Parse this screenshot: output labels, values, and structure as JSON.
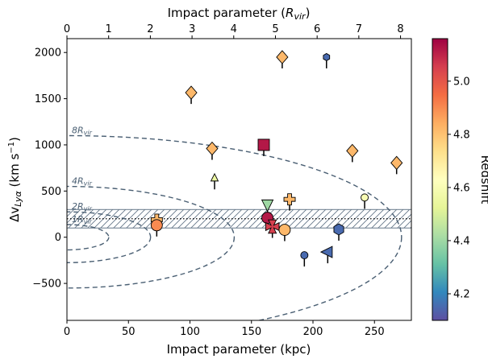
{
  "chart_data": {
    "type": "scatter",
    "title": "",
    "xlabel": "Impact parameter (kpc)",
    "xlabel_top_prefix": "Impact parameter (",
    "xlabel_top_symbol": "R",
    "xlabel_top_sub": "vir",
    "xlabel_top_suffix": ")",
    "ylabel_main": "Δv",
    "ylabel_sub": "Lyα",
    "ylabel_unit": " (km s",
    "ylabel_exp": "−1",
    "ylabel_close": ")",
    "colorbar_label": "Redshift",
    "xlim": [
      0,
      280
    ],
    "ylim": [
      -900,
      2150
    ],
    "top_xlim": [
      0,
      8.26
    ],
    "colorbar_range": [
      4.1,
      5.16
    ],
    "x_ticks": [
      0,
      50,
      100,
      150,
      200,
      250
    ],
    "x_tick_labels": [
      "0",
      "50",
      "100",
      "150",
      "200",
      "250"
    ],
    "y_ticks": [
      -500,
      0,
      500,
      1000,
      1500,
      2000
    ],
    "y_tick_labels": [
      "−500",
      "0",
      "500",
      "1000",
      "1500",
      "2000"
    ],
    "top_ticks": [
      0,
      1,
      2,
      3,
      4,
      5,
      6,
      7,
      8
    ],
    "top_tick_labels": [
      "0",
      "1",
      "2",
      "3",
      "4",
      "5",
      "6",
      "7",
      "8"
    ],
    "colorbar_ticks": [
      4.2,
      4.4,
      4.6,
      4.8,
      5.0
    ],
    "colorbar_tick_labels": [
      "4.2",
      "4.4",
      "4.6",
      "4.8",
      "5.0"
    ],
    "band": {
      "y_low": 100,
      "y_high": 300,
      "line_y": 200
    },
    "ellipses": [
      {
        "label": "8R",
        "label_sub": "vir",
        "half_width_x": 272,
        "half_height_y": 1100
      },
      {
        "label": "4R",
        "label_sub": "vir",
        "half_width_x": 136,
        "half_height_y": 550
      },
      {
        "label": "2R",
        "label_sub": "vir",
        "half_width_x": 68,
        "half_height_y": 275
      },
      {
        "label": "1R",
        "label_sub": "vir",
        "half_width_x": 34,
        "half_height_y": 137
      }
    ],
    "points": [
      {
        "x": 175,
        "y": 1950,
        "marker": "diamond",
        "z": 4.82
      },
      {
        "x": 211,
        "y": 1950,
        "marker": "hexagon",
        "z": 4.15,
        "small": true
      },
      {
        "x": 101,
        "y": 1565,
        "marker": "diamond",
        "z": 4.82
      },
      {
        "x": 160,
        "y": 1000,
        "marker": "square",
        "z": 5.12
      },
      {
        "x": 118,
        "y": 960,
        "marker": "diamond",
        "z": 4.82
      },
      {
        "x": 232,
        "y": 935,
        "marker": "diamond",
        "z": 4.82
      },
      {
        "x": 268,
        "y": 805,
        "marker": "diamond",
        "z": 4.82
      },
      {
        "x": 120,
        "y": 640,
        "marker": "triangle-up",
        "z": 4.55,
        "small": true
      },
      {
        "x": 242,
        "y": 430,
        "marker": "circle",
        "z": 4.6,
        "small": true
      },
      {
        "x": 163,
        "y": 355,
        "marker": "triangle-down",
        "z": 4.4
      },
      {
        "x": 181,
        "y": 410,
        "marker": "plus",
        "z": 4.82
      },
      {
        "x": 73,
        "y": 190,
        "marker": "plus",
        "z": 4.82
      },
      {
        "x": 163,
        "y": 210,
        "marker": "circle",
        "z": 5.12
      },
      {
        "x": 167,
        "y": 115,
        "marker": "x",
        "z": 5.05
      },
      {
        "x": 73,
        "y": 130,
        "marker": "circle",
        "z": 4.9
      },
      {
        "x": 177,
        "y": 80,
        "marker": "circle",
        "z": 4.82
      },
      {
        "x": 221,
        "y": 85,
        "marker": "hexagon",
        "z": 4.15
      },
      {
        "x": 193,
        "y": -195,
        "marker": "circle",
        "z": 4.15,
        "small": true
      },
      {
        "x": 212,
        "y": -160,
        "marker": "triangle-left",
        "z": 4.15
      }
    ]
  }
}
